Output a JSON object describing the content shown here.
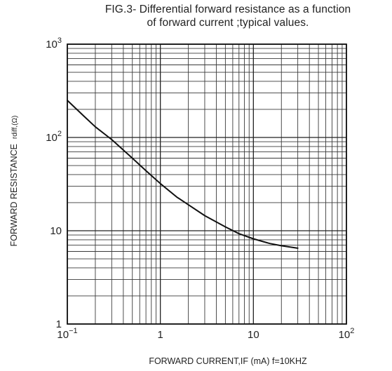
{
  "chart_data": {
    "type": "line",
    "title_line1": "FIG.3- Differential forward resistance as a function",
    "title_line2": "of forward current ;typical values.",
    "ylabel": "FORWARD RESISTANCE",
    "ylabel_symbol": "rdiff,(Ω)",
    "xlabel": "FORWARD CURRENT,IF (mA)  f=10KHZ",
    "x_scale": "log",
    "y_scale": "log",
    "xlim": [
      0.1,
      100
    ],
    "ylim": [
      1,
      1000
    ],
    "grid": true,
    "x_ticks": [
      {
        "value": 0.1,
        "base": "10",
        "exp": "−1"
      },
      {
        "value": 1,
        "base": "1",
        "exp": ""
      },
      {
        "value": 10,
        "base": "10",
        "exp": ""
      },
      {
        "value": 100,
        "base": "10",
        "exp": "2"
      }
    ],
    "y_ticks": [
      {
        "value": 1,
        "base": "1",
        "exp": ""
      },
      {
        "value": 10,
        "base": "10",
        "exp": ""
      },
      {
        "value": 100,
        "base": "10",
        "exp": "2"
      },
      {
        "value": 1000,
        "base": "10",
        "exp": "3"
      }
    ],
    "series": [
      {
        "x": [
          0.1,
          0.15,
          0.2,
          0.3,
          0.5,
          0.7,
          1,
          1.5,
          2,
          3,
          5,
          7,
          10,
          15,
          20,
          30
        ],
        "y": [
          250,
          170,
          130,
          95,
          60,
          44,
          32,
          23,
          19,
          14.5,
          11,
          9.3,
          8.2,
          7.3,
          6.9,
          6.5
        ]
      }
    ]
  }
}
